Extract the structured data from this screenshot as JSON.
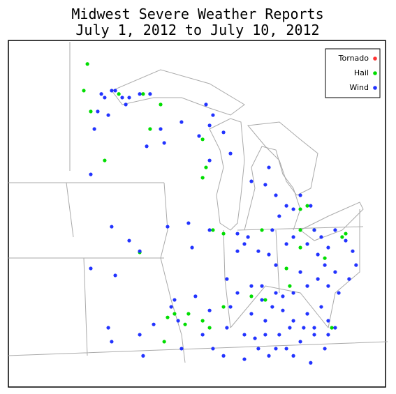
{
  "chart_data": {
    "type": "map",
    "title": "Midwest Severe Weather Reports",
    "subtitle": "July 1, 2012 to July 10, 2012",
    "lon_range": [
      -98.16,
      -79.21
    ],
    "lat_range": [
      35.2,
      49.64
    ],
    "series": [
      {
        "name": "Tornado",
        "color": "#ff3333",
        "lon": [],
        "lat": []
      },
      {
        "name": "Hail",
        "color": "#00dd00",
        "lon": [
          -94.19,
          -94.37,
          -94.02,
          -92.61,
          -91.39,
          -90.51,
          -91.04,
          -88.4,
          -88.23,
          -88.4,
          -93.32,
          -87.88,
          -87.35,
          -91.56,
          -90.16,
          -89.81,
          -89.28,
          -88.4,
          -88.05,
          -87.35,
          -85.95,
          -85.25,
          -84.02,
          -83.49,
          -83.14,
          -83.49,
          -82.79,
          -81.39,
          -81.21,
          -82.26,
          -83.49,
          -84.19,
          -81.91,
          -89.11,
          -90.33,
          -85.42
        ],
        "lat": [
          48.66,
          47.55,
          46.68,
          47.41,
          47.41,
          46.97,
          45.95,
          45.52,
          44.35,
          43.92,
          44.64,
          41.74,
          41.59,
          40.81,
          38.1,
          38.25,
          37.81,
          37.96,
          37.67,
          38.54,
          38.98,
          38.83,
          39.41,
          42.61,
          42.75,
          41.74,
          41.74,
          41.45,
          41.59,
          40.57,
          41.01,
          40.14,
          37.67,
          38.25,
          37.09,
          41.74
        ]
      },
      {
        "name": "Wind",
        "color": "#2233ff",
        "lon": [
          -93.49,
          -93.32,
          -92.97,
          -92.44,
          -92.26,
          -93.67,
          -93.84,
          -93.14,
          -92.79,
          -91.56,
          -91.04,
          -92.09,
          -90.51,
          -90.33,
          -91.21,
          -89.46,
          -88.23,
          -88.05,
          -87.88,
          -87.35,
          -87.0,
          -88.58,
          -94.02,
          -92.97,
          -90.16,
          -89.11,
          -92.09,
          -91.56,
          -94.02,
          -92.79,
          -93.14,
          -92.97,
          -91.56,
          -91.39,
          -90.86,
          -89.81,
          -88.76,
          -88.05,
          -87.35,
          -87.0,
          -86.65,
          -86.3,
          -85.95,
          -85.6,
          -85.25,
          -84.9,
          -84.55,
          -84.19,
          -83.84,
          -83.49,
          -83.14,
          -82.79,
          -82.44,
          -82.09,
          -81.74,
          -82.26,
          -82.97,
          -83.84,
          -84.72,
          -85.07,
          -85.42,
          -85.95,
          -86.12,
          -85.6,
          -85.07,
          -84.72,
          -84.19,
          -83.84,
          -83.14,
          -82.79,
          -82.44,
          -82.09,
          -81.74,
          -81.21,
          -80.86,
          -80.69,
          -81.74,
          -82.09,
          -82.61,
          -83.14,
          -83.49,
          -83.84,
          -84.37,
          -84.55,
          -84.19,
          -84.72,
          -85.25,
          -85.95,
          -85.07,
          -84.9,
          -86.3,
          -86.65,
          -87.18,
          -83.84,
          -83.49,
          -82.97,
          -86.3,
          -87.88,
          -88.4,
          -89.46,
          -89.63,
          -89.98,
          -88.93,
          -88.05,
          -86.65,
          -88.05,
          -87.18,
          -85.42,
          -84.72,
          -82.79,
          -83.32,
          -84.02,
          -84.37,
          -82.09,
          -81.56,
          -81.04,
          -82.61,
          -82.26,
          -85.77,
          -85.25
        ],
        "lat": [
          47.41,
          47.26,
          47.55,
          47.26,
          46.97,
          46.68,
          45.95,
          46.53,
          47.55,
          47.41,
          47.41,
          47.26,
          45.95,
          45.37,
          45.23,
          46.24,
          46.97,
          46.1,
          46.53,
          45.81,
          44.93,
          45.66,
          44.06,
          41.88,
          41.88,
          42.03,
          41.3,
          40.86,
          40.14,
          39.85,
          37.67,
          37.09,
          37.38,
          36.5,
          37.81,
          38.83,
          38.98,
          38.39,
          36.5,
          38.54,
          39.12,
          37.38,
          38.25,
          36.8,
          37.96,
          38.54,
          37.38,
          36.8,
          37.96,
          37.09,
          38.25,
          37.67,
          38.54,
          37.96,
          37.67,
          36.8,
          36.21,
          36.5,
          36.8,
          36.5,
          38.83,
          39.41,
          41.45,
          40.86,
          40.72,
          40.28,
          41.16,
          41.45,
          41.16,
          41.74,
          41.45,
          41.01,
          41.74,
          41.3,
          40.86,
          40.28,
          39.99,
          39.41,
          39.7,
          39.41,
          39.99,
          39.12,
          38.98,
          42.32,
          42.75,
          43.19,
          43.63,
          43.77,
          44.35,
          41.74,
          41.16,
          40.86,
          39.7,
          42.61,
          43.19,
          42.75,
          36.36,
          36.8,
          37.38,
          36.8,
          37.96,
          38.54,
          41.01,
          41.74,
          41.59,
          44.64,
          37.67,
          39.41,
          39.12,
          37.38,
          37.67,
          37.67,
          38.39,
          37.38,
          39.12,
          39.7,
          40.72,
          40.28,
          37.23,
          37.38
        ]
      }
    ]
  }
}
